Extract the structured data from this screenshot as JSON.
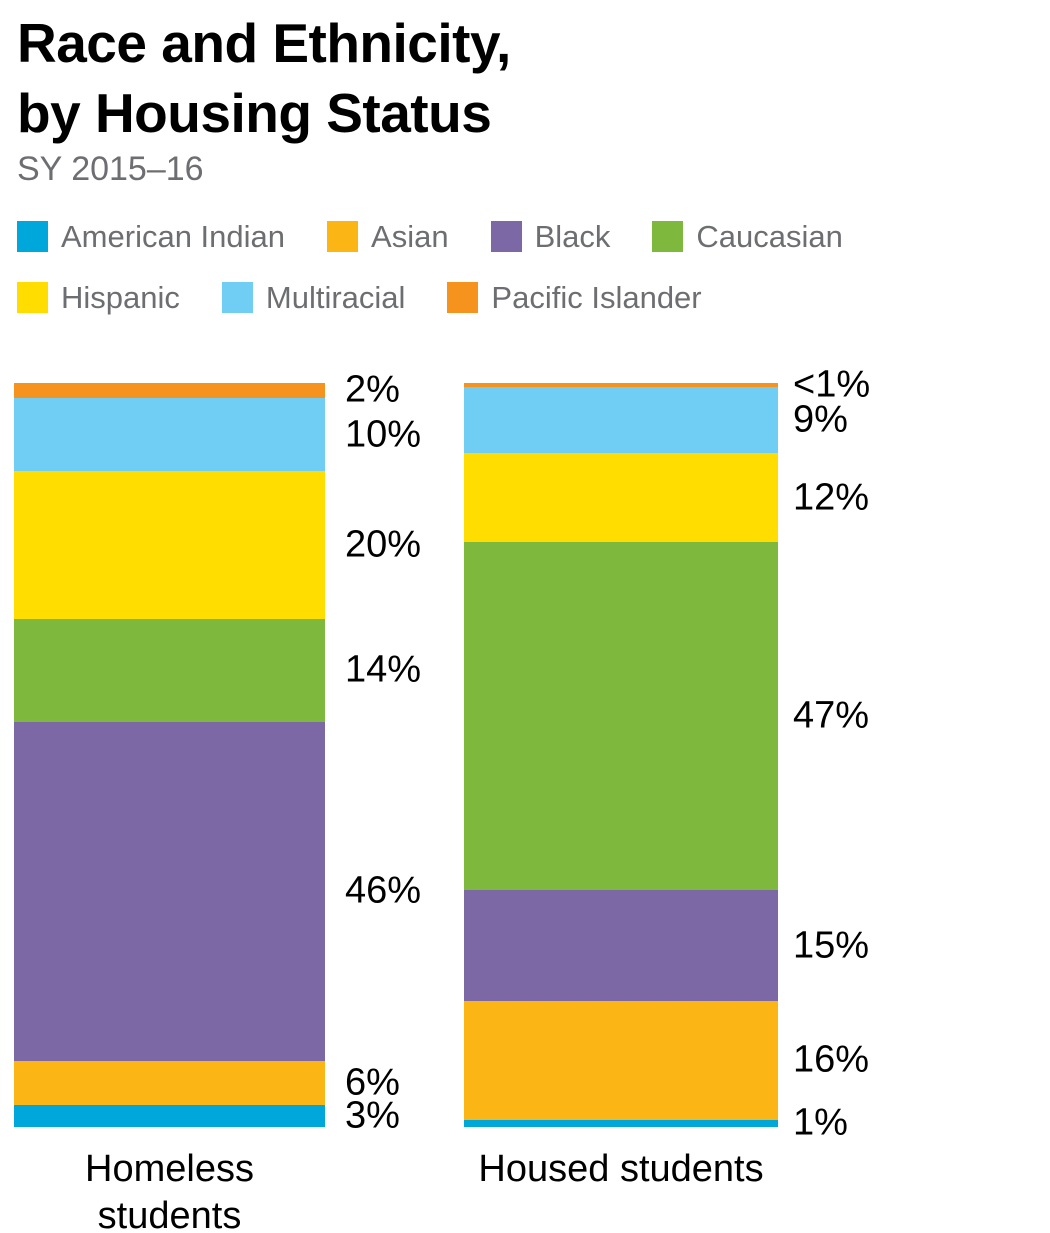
{
  "header": {
    "title_line1": "Race and Ethnicity,",
    "title_line2": "by Housing Status",
    "subtitle": "SY 2015–16"
  },
  "chart_data": {
    "type": "bar",
    "stacked": true,
    "title": "Race and Ethnicity, by Housing Status",
    "subtitle": "SY 2015–16",
    "unit": "percent",
    "grid": false,
    "axes_visible": false,
    "legend_position": "top",
    "categories": [
      "Homeless students",
      "Housed students"
    ],
    "series": [
      {
        "name": "American Indian",
        "color": "#00a7db",
        "values": [
          3,
          1
        ],
        "value_labels": [
          "3%",
          "1%"
        ]
      },
      {
        "name": "Asian",
        "color": "#fbb514",
        "values": [
          6,
          16
        ],
        "value_labels": [
          "6%",
          "16%"
        ]
      },
      {
        "name": "Black",
        "color": "#7b68a5",
        "values": [
          46,
          15
        ],
        "value_labels": [
          "46%",
          "15%"
        ]
      },
      {
        "name": "Caucasian",
        "color": "#7eb83c",
        "values": [
          14,
          47
        ],
        "value_labels": [
          "14%",
          "47%"
        ]
      },
      {
        "name": "Hispanic",
        "color": "#ffdd00",
        "values": [
          20,
          12
        ],
        "value_labels": [
          "20%",
          "12%"
        ]
      },
      {
        "name": "Multiracial",
        "color": "#70cef5",
        "values": [
          10,
          9
        ],
        "value_labels": [
          "10%",
          "9%"
        ]
      },
      {
        "name": "Pacific Islander",
        "color": "#f6931e",
        "values": [
          2,
          0.5
        ],
        "value_labels": [
          "2%",
          "<1%"
        ]
      }
    ],
    "stack_order_top_to_bottom": [
      "Pacific Islander",
      "Multiracial",
      "Hispanic",
      "Caucasian",
      "Black",
      "Asian",
      "American Indian"
    ],
    "legend_rows": [
      [
        "American Indian",
        "Asian",
        "Black",
        "Caucasian"
      ],
      [
        "Hispanic",
        "Multiracial",
        "Pacific Islander"
      ]
    ]
  }
}
